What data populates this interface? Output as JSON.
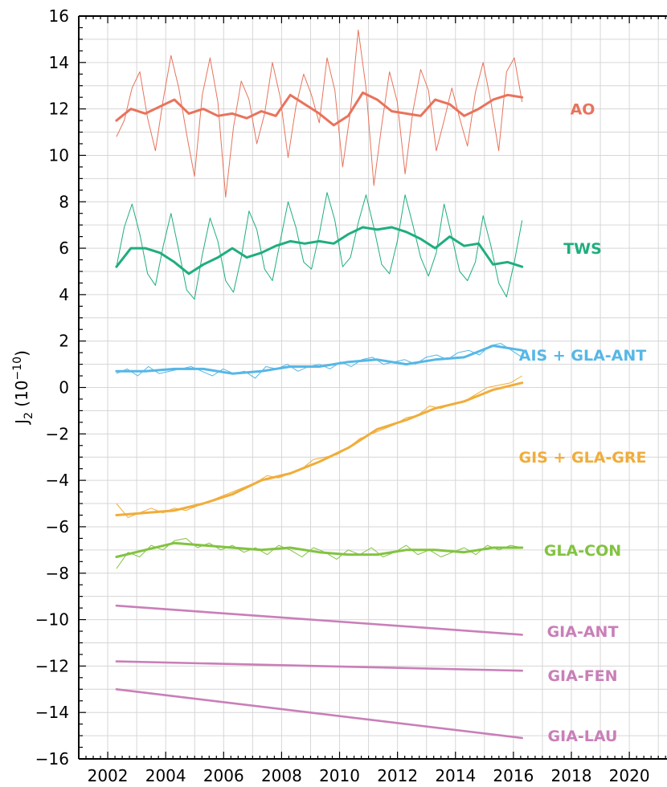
{
  "chart_data": {
    "type": "line",
    "ylabel_main": "J",
    "ylabel_sub": "2",
    "ylabel_unit_open": " (10",
    "ylabel_unit_exp": "−10",
    "ylabel_unit_close": ")",
    "xlim": [
      2001,
      2021.3
    ],
    "ylim": [
      -16,
      16
    ],
    "grid": true,
    "x_ticks": [
      2002,
      2004,
      2006,
      2008,
      2010,
      2012,
      2014,
      2016,
      2018,
      2020
    ],
    "x_tick_labels": [
      "2002",
      "2004",
      "2006",
      "2008",
      "2010",
      "2012",
      "2014",
      "2016",
      "2018",
      "2020"
    ],
    "y_ticks": [
      -16,
      -14,
      -12,
      -10,
      -8,
      -6,
      -4,
      -2,
      0,
      2,
      4,
      6,
      8,
      10,
      12,
      14,
      16
    ],
    "y_tick_labels": [
      "−16",
      "−14",
      "−12",
      "−10",
      "−8",
      "−6",
      "−4",
      "−2",
      "0",
      "2",
      "4",
      "6",
      "8",
      "10",
      "12",
      "14",
      "16"
    ],
    "colors": {
      "AO": "#e8735c",
      "TWS": "#1fae7c",
      "AIS": "#56b7e6",
      "GIS": "#f0ad3a",
      "GLA": "#82c341",
      "GIA": "#c97fb8"
    },
    "series": [
      {
        "name": "AO",
        "color": "#e8735c",
        "label_y": 12,
        "smooth_x": [
          2002.3,
          2002.8,
          2003.3,
          2003.8,
          2004.3,
          2004.8,
          2005.3,
          2005.8,
          2006.3,
          2006.8,
          2007.3,
          2007.8,
          2008.3,
          2008.8,
          2009.3,
          2009.8,
          2010.3,
          2010.8,
          2011.3,
          2011.8,
          2012.3,
          2012.8,
          2013.3,
          2013.8,
          2014.3,
          2014.8,
          2015.3,
          2015.8,
          2016.3
        ],
        "smooth_y": [
          11.5,
          12.0,
          11.8,
          12.1,
          12.4,
          11.8,
          12.0,
          11.7,
          11.8,
          11.6,
          11.9,
          11.7,
          12.6,
          12.2,
          11.8,
          11.3,
          11.7,
          12.7,
          12.4,
          11.9,
          11.8,
          11.7,
          12.4,
          12.2,
          11.7,
          12.0,
          12.4,
          12.6,
          12.5
        ],
        "monthly_y": [
          10.8,
          11.5,
          12.9,
          13.6,
          11.6,
          10.2,
          12.4,
          14.3,
          12.9,
          10.9,
          9.1,
          12.6,
          14.2,
          12.3,
          8.2,
          11.2,
          13.2,
          12.4,
          10.5,
          11.8,
          14.0,
          12.5,
          9.9,
          12.1,
          13.5,
          12.6,
          11.4,
          14.2,
          12.8,
          9.5,
          11.9,
          15.4,
          12.9,
          8.7,
          11.3,
          13.6,
          12.3,
          9.2,
          11.9,
          13.7,
          12.8,
          10.2,
          11.5,
          12.9,
          11.6,
          10.4,
          12.7,
          14.0,
          12.3,
          10.2,
          13.6,
          14.2,
          12.3
        ]
      },
      {
        "name": "TWS",
        "color": "#1fae7c",
        "label_y": 6,
        "smooth_x": [
          2002.3,
          2002.8,
          2003.3,
          2003.8,
          2004.3,
          2004.8,
          2005.3,
          2005.8,
          2006.3,
          2006.8,
          2007.3,
          2007.8,
          2008.3,
          2008.8,
          2009.3,
          2009.8,
          2010.3,
          2010.8,
          2011.3,
          2011.8,
          2012.3,
          2012.8,
          2013.3,
          2013.8,
          2014.3,
          2014.8,
          2015.3,
          2015.8,
          2016.3
        ],
        "smooth_y": [
          5.2,
          6.0,
          6.0,
          5.8,
          5.4,
          4.9,
          5.3,
          5.6,
          6.0,
          5.6,
          5.8,
          6.1,
          6.3,
          6.2,
          6.3,
          6.2,
          6.6,
          6.9,
          6.8,
          6.9,
          6.7,
          6.4,
          6.0,
          6.5,
          6.1,
          6.2,
          5.3,
          5.4,
          5.2
        ],
        "monthly_y": [
          5.2,
          6.9,
          7.9,
          6.6,
          4.9,
          4.4,
          6.1,
          7.5,
          5.9,
          4.2,
          3.8,
          5.7,
          7.3,
          6.3,
          4.6,
          4.1,
          5.6,
          7.6,
          6.8,
          5.1,
          4.6,
          6.3,
          8.0,
          6.9,
          5.4,
          5.1,
          6.6,
          8.4,
          7.2,
          5.2,
          5.6,
          7.1,
          8.3,
          6.9,
          5.3,
          4.9,
          6.3,
          8.3,
          7.0,
          5.6,
          4.8,
          5.8,
          7.9,
          6.5,
          5.0,
          4.6,
          5.4,
          7.4,
          6.1,
          4.5,
          3.9,
          5.4,
          7.2
        ]
      },
      {
        "name": "AIS + GLA-ANT",
        "color": "#56b7e6",
        "label_y": 1.4,
        "smooth_x": [
          2002.3,
          2003.3,
          2004.3,
          2005.3,
          2006.3,
          2007.3,
          2008.3,
          2009.3,
          2010.3,
          2011.3,
          2012.3,
          2013.3,
          2014.3,
          2015.3,
          2016.3
        ],
        "smooth_y": [
          0.7,
          0.7,
          0.8,
          0.8,
          0.6,
          0.7,
          0.9,
          0.9,
          1.1,
          1.2,
          1.0,
          1.2,
          1.3,
          1.8,
          1.6
        ],
        "monthly_y": [
          0.6,
          0.8,
          0.5,
          0.9,
          0.6,
          0.7,
          0.8,
          0.9,
          0.7,
          0.5,
          0.8,
          0.6,
          0.7,
          0.4,
          0.9,
          0.8,
          1.0,
          0.7,
          0.9,
          1.0,
          0.8,
          1.1,
          0.9,
          1.2,
          1.3,
          1.0,
          1.1,
          1.2,
          1.0,
          1.3,
          1.4,
          1.2,
          1.5,
          1.6,
          1.4,
          1.8,
          1.9,
          1.6,
          1.3
        ]
      },
      {
        "name": "GIS + GLA-GRE",
        "color": "#f0ad3a",
        "label_y": -3,
        "smooth_x": [
          2002.3,
          2003.3,
          2004.3,
          2005.3,
          2006.3,
          2007.3,
          2008.3,
          2009.3,
          2010.3,
          2011.3,
          2012.3,
          2013.3,
          2014.3,
          2015.3,
          2016.3
        ],
        "smooth_y": [
          -5.5,
          -5.4,
          -5.3,
          -5.0,
          -4.6,
          -4.0,
          -3.7,
          -3.2,
          -2.6,
          -1.8,
          -1.4,
          -0.9,
          -0.6,
          -0.1,
          0.2
        ],
        "monthly_y": [
          -5.0,
          -5.6,
          -5.4,
          -5.2,
          -5.4,
          -5.2,
          -5.3,
          -5.1,
          -4.9,
          -4.7,
          -4.5,
          -4.3,
          -4.1,
          -3.8,
          -3.9,
          -3.7,
          -3.5,
          -3.1,
          -3.0,
          -2.9,
          -2.6,
          -2.2,
          -2.0,
          -1.8,
          -1.6,
          -1.3,
          -1.2,
          -0.8,
          -0.9,
          -0.7,
          -0.6,
          -0.3,
          0.0,
          0.1,
          0.2,
          0.5
        ]
      },
      {
        "name": "GLA-CON",
        "color": "#82c341",
        "label_y": -7,
        "smooth_x": [
          2002.3,
          2003.3,
          2004.3,
          2005.3,
          2006.3,
          2007.3,
          2008.3,
          2009.3,
          2010.3,
          2011.3,
          2012.3,
          2013.3,
          2014.3,
          2015.3,
          2016.3
        ],
        "smooth_y": [
          -7.3,
          -7.0,
          -6.7,
          -6.8,
          -6.9,
          -7.0,
          -6.9,
          -7.1,
          -7.2,
          -7.2,
          -7.0,
          -7.0,
          -7.1,
          -6.9,
          -6.9
        ],
        "monthly_y": [
          -7.8,
          -7.1,
          -7.3,
          -6.8,
          -7.0,
          -6.6,
          -6.5,
          -6.9,
          -6.7,
          -7.0,
          -6.8,
          -7.1,
          -6.9,
          -7.2,
          -6.8,
          -7.0,
          -7.3,
          -6.9,
          -7.1,
          -7.4,
          -7.0,
          -7.2,
          -6.9,
          -7.3,
          -7.1,
          -6.8,
          -7.2,
          -7.0,
          -7.3,
          -7.1,
          -6.9,
          -7.2,
          -6.8,
          -7.0,
          -6.8,
          -6.9
        ]
      },
      {
        "name": "GIA-ANT",
        "color": "#c97fb8",
        "label_y": -10.5,
        "smooth_x": [
          2002.3,
          2016.3
        ],
        "smooth_y": [
          -9.4,
          -10.65
        ]
      },
      {
        "name": "GIA-FEN",
        "color": "#c97fb8",
        "label_y": -12.4,
        "smooth_x": [
          2002.3,
          2016.3
        ],
        "smooth_y": [
          -11.8,
          -12.2
        ]
      },
      {
        "name": "GIA-LAU",
        "color": "#c97fb8",
        "label_y": -15,
        "smooth_x": [
          2002.3,
          2016.3
        ],
        "smooth_y": [
          -13.0,
          -15.1
        ]
      }
    ]
  }
}
